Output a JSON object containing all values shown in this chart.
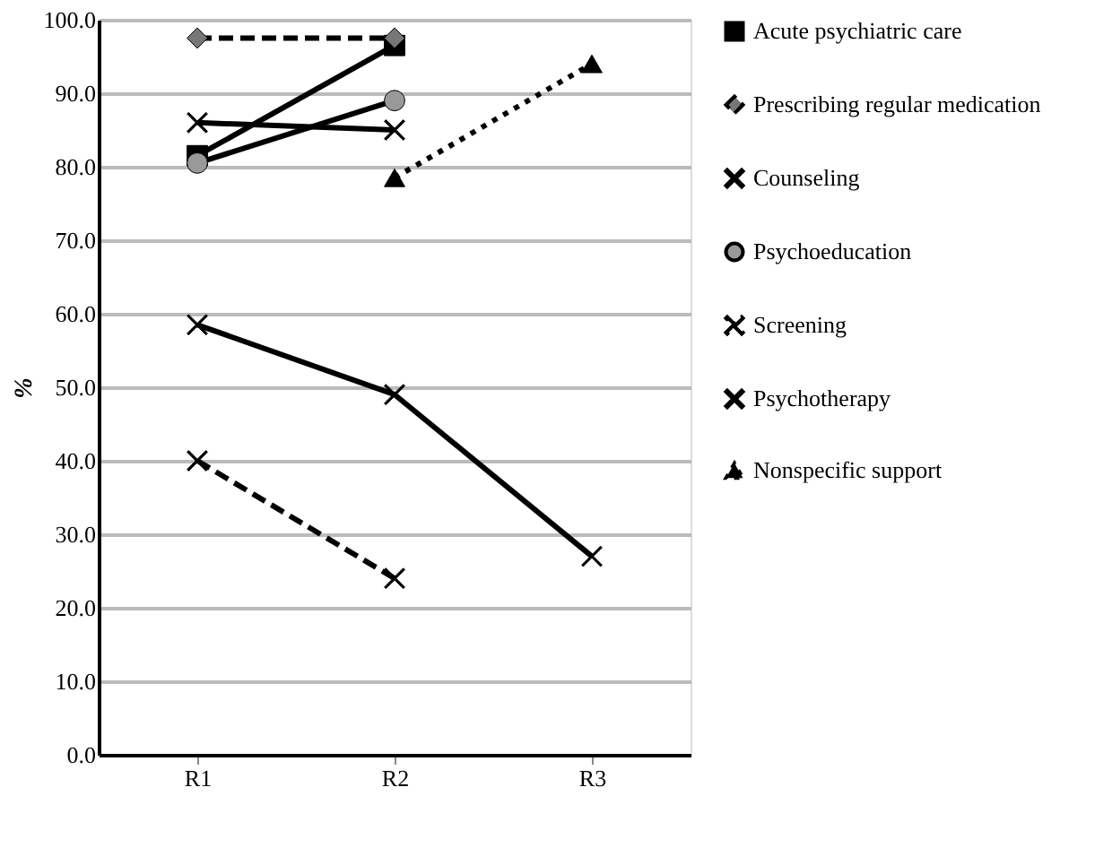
{
  "chart_data": {
    "type": "line",
    "ylabel": "%",
    "categories": [
      "R1",
      "R2",
      "R3"
    ],
    "ylim": [
      0,
      100
    ],
    "yticks": [
      {
        "value": 0,
        "label": "0.0"
      },
      {
        "value": 10,
        "label": "10.0"
      },
      {
        "value": 20,
        "label": "20.0"
      },
      {
        "value": 30,
        "label": "30.0"
      },
      {
        "value": 40,
        "label": "40.0"
      },
      {
        "value": 50,
        "label": "50.0"
      },
      {
        "value": 60,
        "label": "60.0"
      },
      {
        "value": 70,
        "label": "70.0"
      },
      {
        "value": 80,
        "label": "80.0"
      },
      {
        "value": 90,
        "label": "90.0"
      },
      {
        "value": 100,
        "label": "100.0"
      }
    ],
    "grid": "y",
    "legend": "right",
    "series": [
      {
        "name": "Acute psychiatric care",
        "color": "#000000",
        "marker": "square",
        "line_style": "solid",
        "values": [
          81.5,
          96.5,
          null
        ]
      },
      {
        "name": "Prescribing regular medication",
        "color": "#777777",
        "marker": "diamond",
        "line_style": "dashed",
        "values": [
          97.5,
          97.5,
          null
        ]
      },
      {
        "name": "Counseling",
        "color": "#000000",
        "marker": "cross",
        "line_style": "solid",
        "values": [
          86,
          85,
          null
        ]
      },
      {
        "name": "Psychoeducation",
        "color": "#999999",
        "marker": "circle",
        "line_style": "solid",
        "values": [
          80.5,
          89,
          null
        ]
      },
      {
        "name": "Screening",
        "color": "#000000",
        "marker": "cross",
        "line_style": "dashed",
        "values": [
          40,
          24,
          null
        ]
      },
      {
        "name": "Psychotherapy",
        "color": "#000000",
        "marker": "cross",
        "line_style": "solid",
        "values": [
          58.5,
          49,
          27
        ]
      },
      {
        "name": "Nonspecific support",
        "color": "#000000",
        "marker": "triangle",
        "line_style": "dotted",
        "values": [
          null,
          78.5,
          94
        ]
      }
    ]
  }
}
